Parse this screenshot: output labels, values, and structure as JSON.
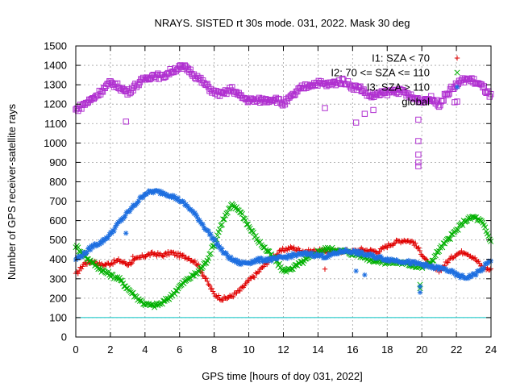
{
  "chart_data": {
    "type": "scatter",
    "title": "NRAYS. SISTED rt 30s mode. 031, 2022. Mask 30 deg",
    "xlabel": "GPS time [hours of doy 031, 2022]",
    "ylabel": "Number of GPS receiver-satellite rays",
    "xlim": [
      0,
      24
    ],
    "ylim": [
      0,
      1500
    ],
    "xticks": [
      0,
      2,
      4,
      6,
      8,
      10,
      12,
      14,
      16,
      18,
      20,
      22,
      24
    ],
    "yticks": [
      0,
      100,
      200,
      300,
      400,
      500,
      600,
      700,
      800,
      900,
      1000,
      1100,
      1200,
      1300,
      1400,
      1500
    ],
    "grid": true,
    "legend_position": "top-right",
    "threshold_line": {
      "y": 100,
      "color": "#00c0c0"
    },
    "series": [
      {
        "name": "I1: SZA < 70",
        "marker": "+",
        "color": "#e00000",
        "points": [
          [
            0,
            320
          ],
          [
            0.5,
            380
          ],
          [
            1,
            390
          ],
          [
            1.5,
            370
          ],
          [
            2,
            380
          ],
          [
            2.5,
            395
          ],
          [
            3,
            375
          ],
          [
            3.5,
            400
          ],
          [
            4,
            420
          ],
          [
            4.5,
            430
          ],
          [
            5,
            420
          ],
          [
            5.5,
            435
          ],
          [
            6,
            420
          ],
          [
            6.5,
            410
          ],
          [
            7,
            380
          ],
          [
            7.5,
            300
          ],
          [
            8,
            220
          ],
          [
            8.5,
            195
          ],
          [
            9,
            210
          ],
          [
            9.5,
            240
          ],
          [
            10,
            290
          ],
          [
            10.5,
            330
          ],
          [
            11,
            380
          ],
          [
            11.5,
            420
          ],
          [
            12,
            450
          ],
          [
            12.5,
            460
          ],
          [
            13,
            445
          ],
          [
            13.5,
            440
          ],
          [
            14,
            445
          ],
          [
            14.5,
            440
          ],
          [
            15,
            440
          ],
          [
            15.5,
            445
          ],
          [
            16,
            440
          ],
          [
            16.5,
            450
          ],
          [
            17,
            445
          ],
          [
            17.5,
            440
          ],
          [
            18,
            470
          ],
          [
            18.5,
            490
          ],
          [
            19,
            500
          ],
          [
            19.5,
            490
          ],
          [
            20,
            430
          ],
          [
            20.5,
            360
          ],
          [
            21,
            340
          ],
          [
            21.5,
            390
          ],
          [
            22,
            430
          ],
          [
            22.5,
            440
          ],
          [
            23,
            410
          ],
          [
            23.5,
            360
          ],
          [
            24,
            345
          ]
        ],
        "outliers": [
          [
            3.3,
            415
          ],
          [
            14.4,
            350
          ]
        ]
      },
      {
        "name": "I2: 70 <= SZA <= 110",
        "marker": "x",
        "color": "#00b000",
        "points": [
          [
            0,
            470
          ],
          [
            0.5,
            420
          ],
          [
            1,
            380
          ],
          [
            1.5,
            345
          ],
          [
            2,
            320
          ],
          [
            2.5,
            300
          ],
          [
            3,
            250
          ],
          [
            3.5,
            205
          ],
          [
            4,
            170
          ],
          [
            4.5,
            160
          ],
          [
            5,
            175
          ],
          [
            5.5,
            210
          ],
          [
            6,
            260
          ],
          [
            6.5,
            300
          ],
          [
            7,
            330
          ],
          [
            7.5,
            380
          ],
          [
            8,
            480
          ],
          [
            8.5,
            600
          ],
          [
            9,
            680
          ],
          [
            9.5,
            650
          ],
          [
            10,
            570
          ],
          [
            10.5,
            500
          ],
          [
            11,
            450
          ],
          [
            11.5,
            400
          ],
          [
            12,
            340
          ],
          [
            12.5,
            355
          ],
          [
            13,
            380
          ],
          [
            13.5,
            410
          ],
          [
            14,
            440
          ],
          [
            14.5,
            455
          ],
          [
            15,
            450
          ],
          [
            15.5,
            440
          ],
          [
            16,
            430
          ],
          [
            16.5,
            420
          ],
          [
            17,
            400
          ],
          [
            17.5,
            390
          ],
          [
            18,
            385
          ],
          [
            18.5,
            385
          ],
          [
            19,
            380
          ],
          [
            19.5,
            370
          ],
          [
            20,
            360
          ],
          [
            20.5,
            380
          ],
          [
            21,
            450
          ],
          [
            21.5,
            500
          ],
          [
            22,
            550
          ],
          [
            22.5,
            600
          ],
          [
            23,
            620
          ],
          [
            23.5,
            590
          ],
          [
            24,
            490
          ]
        ],
        "outliers": [
          [
            19.9,
            270
          ],
          [
            19.9,
            250
          ]
        ]
      },
      {
        "name": "I3: SZA > 110",
        "marker": "*",
        "color": "#1e6fe0",
        "points": [
          [
            0,
            400
          ],
          [
            0.5,
            430
          ],
          [
            1,
            470
          ],
          [
            1.5,
            490
          ],
          [
            2,
            530
          ],
          [
            2.5,
            590
          ],
          [
            3,
            640
          ],
          [
            3.5,
            690
          ],
          [
            4,
            740
          ],
          [
            4.5,
            750
          ],
          [
            5,
            745
          ],
          [
            5.5,
            730
          ],
          [
            6,
            705
          ],
          [
            6.5,
            670
          ],
          [
            7,
            620
          ],
          [
            7.5,
            560
          ],
          [
            8,
            500
          ],
          [
            8.5,
            440
          ],
          [
            9,
            400
          ],
          [
            9.5,
            380
          ],
          [
            10,
            385
          ],
          [
            10.5,
            395
          ],
          [
            11,
            400
          ],
          [
            11.5,
            400
          ],
          [
            12,
            410
          ],
          [
            12.5,
            420
          ],
          [
            13,
            425
          ],
          [
            13.5,
            430
          ],
          [
            14,
            420
          ],
          [
            14.5,
            415
          ],
          [
            15,
            430
          ],
          [
            15.5,
            445
          ],
          [
            16,
            440
          ],
          [
            16.5,
            430
          ],
          [
            17,
            420
          ],
          [
            17.5,
            410
          ],
          [
            18,
            400
          ],
          [
            18.5,
            395
          ],
          [
            19,
            390
          ],
          [
            19.5,
            380
          ],
          [
            20,
            375
          ],
          [
            20.5,
            360
          ],
          [
            21,
            355
          ],
          [
            21.5,
            345
          ],
          [
            22,
            320
          ],
          [
            22.5,
            305
          ],
          [
            23,
            320
          ],
          [
            23.5,
            350
          ],
          [
            24,
            400
          ]
        ],
        "outliers": [
          [
            2.9,
            535
          ],
          [
            16.2,
            340
          ],
          [
            16.7,
            320
          ],
          [
            19.9,
            230
          ],
          [
            19.9,
            260
          ]
        ]
      },
      {
        "name": "global",
        "marker": "square",
        "color": "#b030d0",
        "points": [
          [
            0,
            1170
          ],
          [
            0.5,
            1200
          ],
          [
            1,
            1230
          ],
          [
            1.5,
            1270
          ],
          [
            2,
            1310
          ],
          [
            2.5,
            1290
          ],
          [
            3,
            1260
          ],
          [
            3.5,
            1300
          ],
          [
            4,
            1330
          ],
          [
            4.5,
            1350
          ],
          [
            5,
            1340
          ],
          [
            5.5,
            1370
          ],
          [
            6,
            1390
          ],
          [
            6.5,
            1380
          ],
          [
            7,
            1340
          ],
          [
            7.5,
            1300
          ],
          [
            8,
            1260
          ],
          [
            8.5,
            1250
          ],
          [
            9,
            1280
          ],
          [
            9.5,
            1240
          ],
          [
            10,
            1220
          ],
          [
            10.5,
            1220
          ],
          [
            11,
            1220
          ],
          [
            11.5,
            1230
          ],
          [
            12,
            1200
          ],
          [
            12.5,
            1240
          ],
          [
            13,
            1280
          ],
          [
            13.5,
            1300
          ],
          [
            14,
            1310
          ],
          [
            14.5,
            1300
          ],
          [
            15,
            1310
          ],
          [
            15.5,
            1320
          ],
          [
            16,
            1290
          ],
          [
            16.5,
            1280
          ],
          [
            17,
            1240
          ],
          [
            17.5,
            1250
          ],
          [
            18,
            1260
          ],
          [
            18.5,
            1270
          ],
          [
            19,
            1260
          ],
          [
            19.5,
            1230
          ],
          [
            20,
            1220
          ],
          [
            20.5,
            1230
          ],
          [
            21,
            1200
          ],
          [
            21.5,
            1260
          ],
          [
            22,
            1300
          ],
          [
            22.5,
            1330
          ],
          [
            23,
            1320
          ],
          [
            23.5,
            1290
          ],
          [
            24,
            1240
          ]
        ],
        "outliers": [
          [
            2.9,
            1110
          ],
          [
            6.3,
            1400
          ],
          [
            14.4,
            1180
          ],
          [
            16.2,
            1105
          ],
          [
            16.7,
            1150
          ],
          [
            17.2,
            1170
          ],
          [
            19.8,
            1120
          ],
          [
            19.8,
            1010
          ],
          [
            19.8,
            940
          ],
          [
            19.8,
            900
          ],
          [
            19.8,
            880
          ],
          [
            21.9,
            1210
          ]
        ]
      }
    ]
  }
}
